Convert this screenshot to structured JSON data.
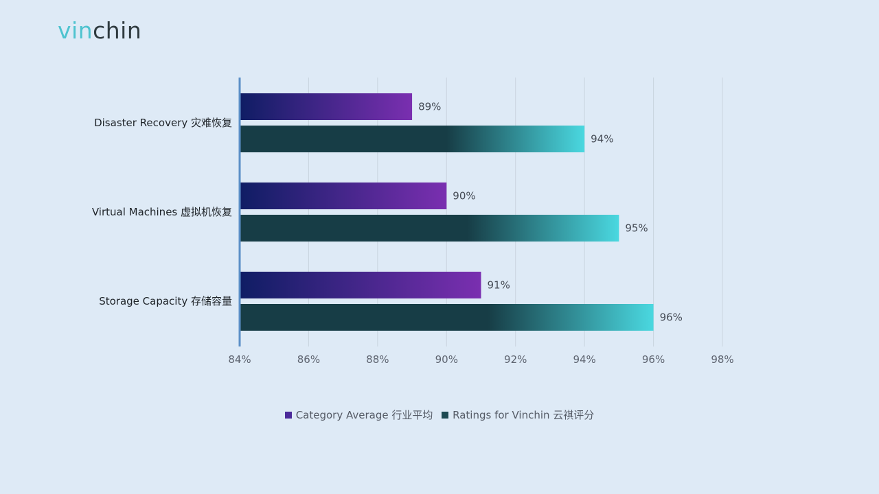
{
  "logo": {
    "part1": "vin",
    "part2": "chin"
  },
  "colors": {
    "background": "#deeaf6",
    "category_average": [
      "#0e1f66",
      "#7a2fb0"
    ],
    "ratings_vinchin": [
      "#173d46",
      "#4ad8e0"
    ],
    "axis": "#5b8fc7",
    "grid": "#c9d4df"
  },
  "chart_data": {
    "type": "bar",
    "orientation": "horizontal",
    "categories": [
      "Disaster Recovery 灾难恢复",
      "Virtual Machines 虚拟机恢复",
      "Storage Capacity 存储容量"
    ],
    "series": [
      {
        "name": "Category Average 行业平均",
        "values": [
          89,
          90,
          91
        ],
        "labels": [
          "89%",
          "90%",
          "91%"
        ]
      },
      {
        "name": "Ratings for Vinchin 云祺评分",
        "values": [
          94,
          95,
          96
        ],
        "labels": [
          "94%",
          "95%",
          "96%"
        ]
      }
    ],
    "xlim": [
      84,
      98
    ],
    "xticks": [
      "84%",
      "86%",
      "88%",
      "90%",
      "92%",
      "94%",
      "96%",
      "98%"
    ],
    "grid": true,
    "legend_position": "bottom"
  },
  "legend": [
    {
      "label": "Category Average 行业平均",
      "color": "#4b2a9a"
    },
    {
      "label": "Ratings for Vinchin 云祺评分",
      "color": "#1d4a52"
    }
  ]
}
